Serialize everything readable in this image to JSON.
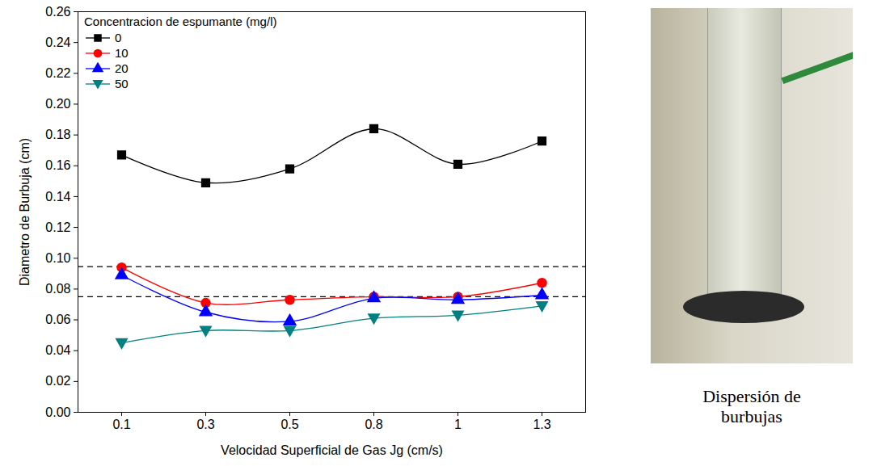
{
  "chart_data": {
    "type": "line",
    "x_label": "Velocidad Superficial de Gas Jg (cm/s)",
    "y_label": "Diametro de Burbuja (cm)",
    "categories": [
      "0.1",
      "0.3",
      "0.5",
      "0.8",
      "1",
      "1.3"
    ],
    "series": [
      {
        "name": "0",
        "color": "#000000",
        "marker": "square",
        "line_style": "solid",
        "values": [
          0.167,
          0.149,
          0.158,
          0.184,
          0.161,
          0.176
        ]
      },
      {
        "name": "10",
        "color": "#ff0000",
        "marker": "circle",
        "line_style": "solid",
        "values": [
          0.094,
          0.071,
          0.073,
          0.075,
          0.075,
          0.084
        ]
      },
      {
        "name": "20",
        "color": "#0000ff",
        "marker": "triangle",
        "line_style": "solid",
        "values": [
          0.089,
          0.065,
          0.059,
          0.074,
          0.073,
          0.076
        ]
      },
      {
        "name": "50",
        "color": "#008080",
        "marker": "triangle-down",
        "line_style": "solid",
        "values": [
          0.045,
          0.053,
          0.053,
          0.061,
          0.063,
          0.069
        ]
      }
    ],
    "ylim": [
      0,
      0.26
    ],
    "yticks": [
      {
        "value": 0,
        "label": "0.00"
      },
      {
        "value": 0.02,
        "label": "0.02"
      },
      {
        "value": 0.04,
        "label": "0.04"
      },
      {
        "value": 0.06,
        "label": "0.06"
      },
      {
        "value": 0.08,
        "label": "0.08"
      },
      {
        "value": 0.1,
        "label": "0.10"
      },
      {
        "value": 0.12,
        "label": "0.12"
      },
      {
        "value": 0.14,
        "label": "0.14"
      },
      {
        "value": 0.16,
        "label": "0.16"
      },
      {
        "value": 0.18,
        "label": "0.18"
      },
      {
        "value": 0.2,
        "label": "0.20"
      },
      {
        "value": 0.22,
        "label": "0.22"
      },
      {
        "value": 0.24,
        "label": "0.24"
      },
      {
        "value": 0.26,
        "label": "0.26"
      }
    ],
    "legend": "upper left",
    "legend_title": "Concentracion de espumante (mg/l)",
    "reference_lines": {
      "values": [
        0.0945,
        0.075
      ],
      "line_style": "dashed",
      "color": "#000000"
    }
  },
  "image": {
    "caption": "Dispersión de burbujas"
  }
}
